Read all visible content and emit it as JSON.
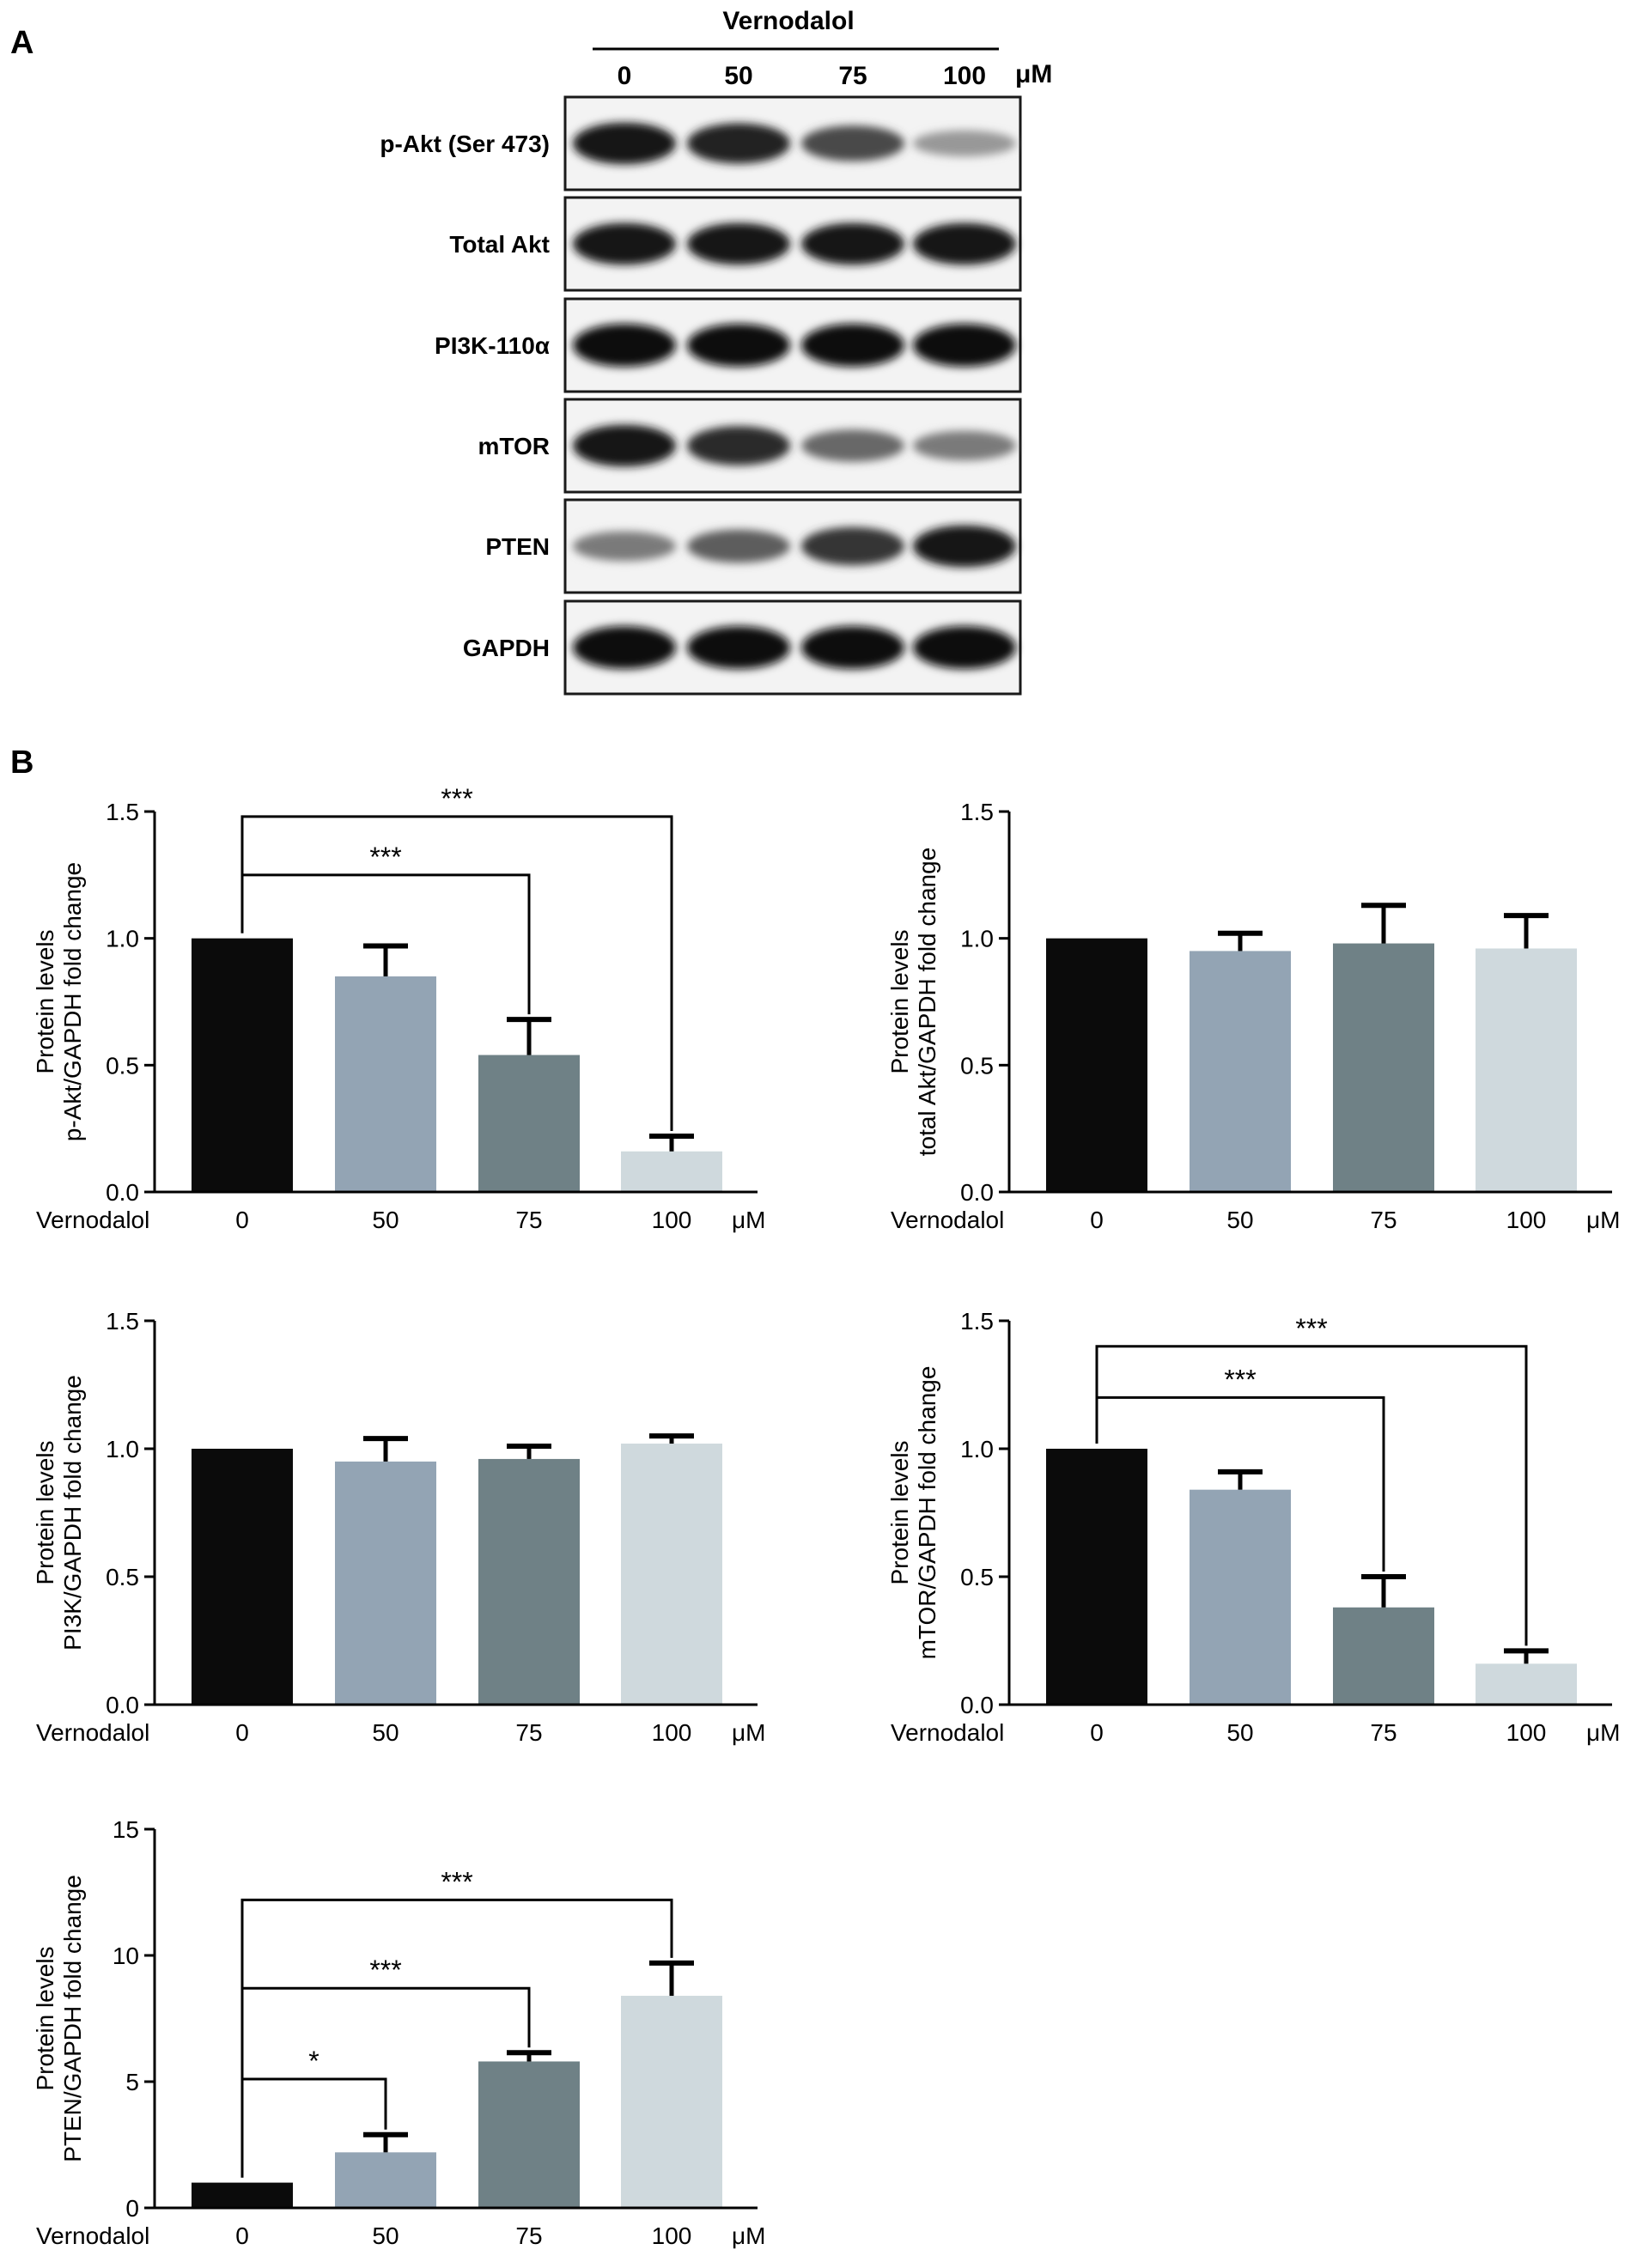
{
  "panel_a": {
    "label": "A",
    "treatment": "Vernodalol",
    "doses": [
      "0",
      "50",
      "75",
      "100"
    ],
    "unit": "μM",
    "blots": [
      {
        "label": "p-Akt (Ser 473)",
        "intensity": [
          0.95,
          0.9,
          0.7,
          0.3
        ]
      },
      {
        "label": "Total Akt",
        "intensity": [
          0.95,
          0.95,
          0.95,
          0.95
        ]
      },
      {
        "label": "PI3K-110α",
        "intensity": [
          1.0,
          1.0,
          1.0,
          1.0
        ]
      },
      {
        "label": "mTOR",
        "intensity": [
          0.95,
          0.85,
          0.55,
          0.45
        ]
      },
      {
        "label": "PTEN",
        "intensity": [
          0.45,
          0.6,
          0.8,
          0.95
        ]
      },
      {
        "label": "GAPDH",
        "intensity": [
          1.0,
          1.0,
          1.0,
          1.0
        ]
      }
    ]
  },
  "panel_b": {
    "label": "B"
  },
  "colors": {
    "bars": [
      "#0b0b0b",
      "#93a4b4",
      "#6f8186",
      "#cfd9dd"
    ]
  },
  "chart_data": [
    {
      "type": "bar",
      "categories": [
        "0",
        "50",
        "75",
        "100"
      ],
      "values": [
        1.0,
        0.85,
        0.54,
        0.16
      ],
      "errors": [
        0.0,
        0.12,
        0.14,
        0.06
      ],
      "ylabel_line1": "Protein levels",
      "ylabel_line2": "p-Akt/GAPDH fold change",
      "xlabel": "Vernodalol",
      "unit": "μM",
      "ylim": [
        0,
        1.5
      ],
      "ticks": [
        "0.0",
        "0.5",
        "1.0",
        "1.5"
      ],
      "tick_values": [
        0,
        0.5,
        1.0,
        1.5
      ],
      "significance": [
        {
          "from": 0,
          "to": 2,
          "label": "***",
          "y": 1.25
        },
        {
          "from": 0,
          "to": 3,
          "label": "***",
          "y": 1.48
        }
      ]
    },
    {
      "type": "bar",
      "categories": [
        "0",
        "50",
        "75",
        "100"
      ],
      "values": [
        1.0,
        0.95,
        0.98,
        0.96
      ],
      "errors": [
        0.0,
        0.07,
        0.15,
        0.13
      ],
      "ylabel_line1": "Protein levels",
      "ylabel_line2": "total Akt/GAPDH fold change",
      "xlabel": "Vernodalol",
      "unit": "μM",
      "ylim": [
        0,
        1.5
      ],
      "ticks": [
        "0.0",
        "0.5",
        "1.0",
        "1.5"
      ],
      "tick_values": [
        0,
        0.5,
        1.0,
        1.5
      ],
      "significance": []
    },
    {
      "type": "bar",
      "categories": [
        "0",
        "50",
        "75",
        "100"
      ],
      "values": [
        1.0,
        0.95,
        0.96,
        1.02
      ],
      "errors": [
        0.0,
        0.09,
        0.05,
        0.03
      ],
      "ylabel_line1": "Protein levels",
      "ylabel_line2": "PI3K/GAPDH fold change",
      "xlabel": "Vernodalol",
      "unit": "μM",
      "ylim": [
        0,
        1.5
      ],
      "ticks": [
        "0.0",
        "0.5",
        "1.0",
        "1.5"
      ],
      "tick_values": [
        0,
        0.5,
        1.0,
        1.5
      ],
      "significance": []
    },
    {
      "type": "bar",
      "categories": [
        "0",
        "50",
        "75",
        "100"
      ],
      "values": [
        1.0,
        0.84,
        0.38,
        0.16
      ],
      "errors": [
        0.0,
        0.07,
        0.12,
        0.05
      ],
      "ylabel_line1": "Protein levels",
      "ylabel_line2": "mTOR/GAPDH fold change",
      "xlabel": "Vernodalol",
      "unit": "μM",
      "ylim": [
        0,
        1.5
      ],
      "ticks": [
        "0.0",
        "0.5",
        "1.0",
        "1.5"
      ],
      "tick_values": [
        0,
        0.5,
        1.0,
        1.5
      ],
      "significance": [
        {
          "from": 0,
          "to": 2,
          "label": "***",
          "y": 1.2
        },
        {
          "from": 0,
          "to": 3,
          "label": "***",
          "y": 1.4
        }
      ]
    },
    {
      "type": "bar",
      "categories": [
        "0",
        "50",
        "75",
        "100"
      ],
      "values": [
        1.0,
        2.2,
        5.8,
        8.4
      ],
      "errors": [
        0.0,
        0.7,
        0.35,
        1.3
      ],
      "ylabel_line1": "Protein levels",
      "ylabel_line2": "PTEN/GAPDH fold change",
      "xlabel": "Vernodalol",
      "unit": "μM",
      "ylim": [
        0,
        15
      ],
      "ticks": [
        "0",
        "5",
        "10",
        "15"
      ],
      "tick_values": [
        0,
        5,
        10,
        15
      ],
      "significance": [
        {
          "from": 0,
          "to": 1,
          "label": "*",
          "y": 5.1
        },
        {
          "from": 0,
          "to": 2,
          "label": "***",
          "y": 8.7
        },
        {
          "from": 0,
          "to": 3,
          "label": "***",
          "y": 12.2
        }
      ]
    }
  ]
}
